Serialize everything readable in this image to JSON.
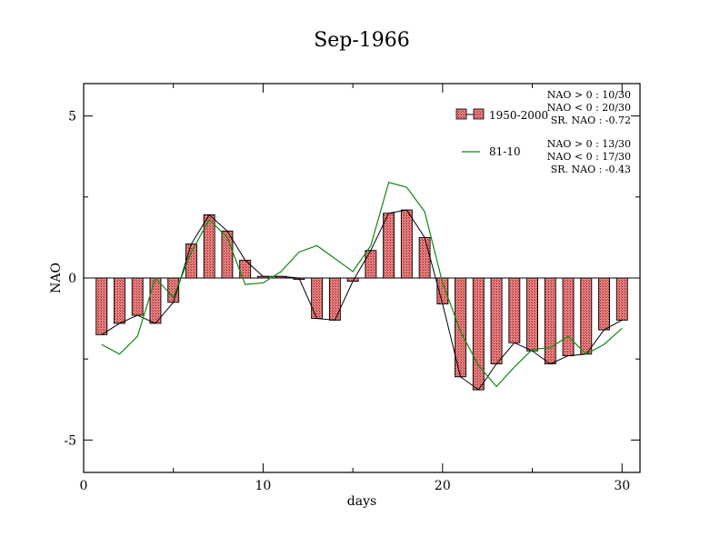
{
  "chart_data": {
    "type": "bar",
    "title": "Sep-1966",
    "xlabel": "days",
    "ylabel": "NAO",
    "xlim": [
      0,
      31
    ],
    "ylim": [
      -6,
      6
    ],
    "xticks": [
      0,
      10,
      20,
      30
    ],
    "yticks": [
      -5,
      0,
      5
    ],
    "x": [
      1,
      2,
      3,
      4,
      5,
      6,
      7,
      8,
      9,
      10,
      11,
      12,
      13,
      14,
      15,
      16,
      17,
      18,
      19,
      20,
      21,
      22,
      23,
      24,
      25,
      26,
      27,
      28,
      29,
      30
    ],
    "series": [
      {
        "name": "1950-2000",
        "kind": "bar+line",
        "color": "#e07070",
        "values": [
          -1.75,
          -1.4,
          -1.15,
          -1.4,
          -0.75,
          1.05,
          1.95,
          1.45,
          0.55,
          0.05,
          0.05,
          0.0,
          -1.25,
          -1.3,
          -0.1,
          0.85,
          2.0,
          2.1,
          1.25,
          -0.8,
          -3.05,
          -3.45,
          -2.65,
          -2.0,
          -2.25,
          -2.65,
          -2.4,
          -2.35,
          -1.6,
          -1.3
        ]
      },
      {
        "name": "81-10",
        "kind": "line",
        "color": "#118811",
        "values": [
          -2.05,
          -2.35,
          -1.8,
          0.0,
          -0.6,
          0.8,
          1.8,
          1.25,
          -0.2,
          -0.15,
          0.2,
          0.8,
          1.0,
          0.6,
          0.2,
          1.0,
          2.95,
          2.8,
          2.05,
          -0.15,
          -1.65,
          -2.7,
          -3.35,
          -2.75,
          -2.2,
          -2.15,
          -1.8,
          -2.35,
          -2.05,
          -1.55
        ]
      }
    ],
    "legend": {
      "placement": "top-right",
      "entries": [
        "1950-2000",
        "81-10"
      ]
    },
    "annotations": {
      "set1": [
        "NAO > 0 : 10/30",
        "NAO < 0 : 20/30",
        "SR. NAO : -0.72"
      ],
      "set2": [
        "NAO > 0 : 13/30",
        "NAO < 0 : 17/30",
        "SR. NAO : -0.43"
      ]
    }
  }
}
